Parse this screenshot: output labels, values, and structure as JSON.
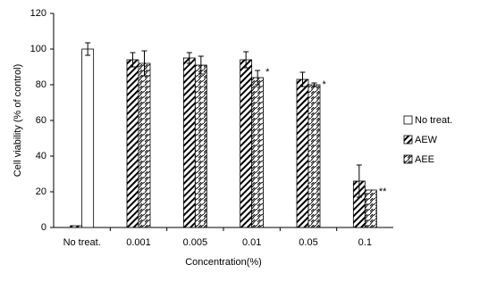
{
  "chart_data": {
    "type": "bar",
    "y_label": "Cell viability (% of control)",
    "x_label": "Concentration(%)",
    "categories": [
      "No treat.",
      "0.001",
      "0.005",
      "0.01",
      "0.05",
      "0.1"
    ],
    "series": [
      {
        "name": "No treat.",
        "color": "#ffffff",
        "pattern": "none",
        "values": [
          100,
          null,
          null,
          null,
          null,
          null
        ],
        "errors": [
          3.5,
          null,
          null,
          null,
          null,
          null
        ],
        "markers": [
          null,
          null,
          null,
          null,
          null,
          null
        ]
      },
      {
        "name": "AEW",
        "color": "#000000",
        "pattern": "diagonal",
        "values": [
          1,
          94,
          95,
          94,
          83,
          26
        ],
        "errors": [
          null,
          4,
          3,
          4.5,
          4,
          9
        ],
        "markers": [
          null,
          null,
          null,
          null,
          null,
          null
        ]
      },
      {
        "name": "AEE",
        "color": "#000000",
        "pattern": "wave",
        "values": [
          null,
          92,
          91,
          84,
          80,
          21
        ],
        "errors": [
          null,
          7,
          5,
          4,
          1,
          null
        ],
        "markers": [
          null,
          null,
          null,
          "*",
          "*",
          "**"
        ]
      }
    ],
    "ylim": [
      0,
      120
    ],
    "yticks": [
      0,
      20,
      40,
      60,
      80,
      100,
      120
    ],
    "grid": false,
    "legend": "right"
  }
}
